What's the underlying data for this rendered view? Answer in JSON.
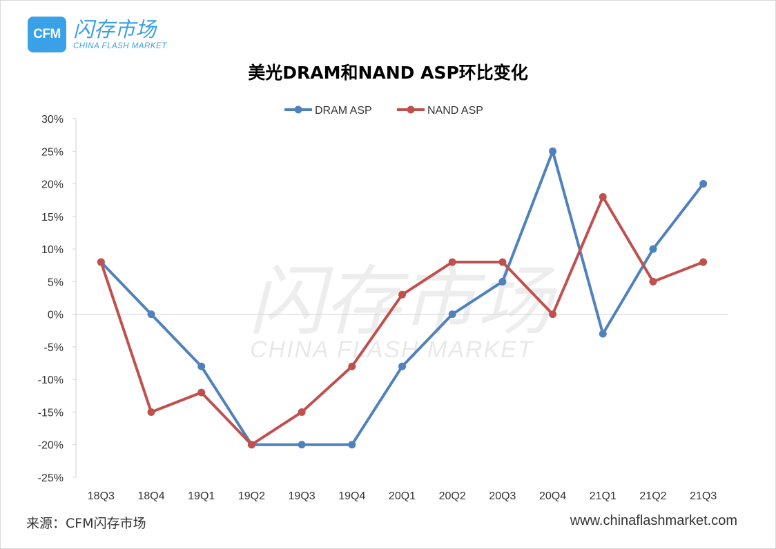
{
  "brand": {
    "logo_abbr": "CFM",
    "name_cn": "闪存市场",
    "name_en": "CHINA FLASH MARKET"
  },
  "watermark": {
    "cn": "闪存市场",
    "en": "CHINA FLASH MARKET"
  },
  "footer": {
    "source": "来源：CFM闪存市场",
    "website": "www.chinaflashmarket.com"
  },
  "colors": {
    "dram": "#4f81bd",
    "nand": "#c0504d",
    "logo": "#3aa0e8"
  },
  "chart_data": {
    "type": "line",
    "title": "美光DRAM和NAND ASP环比变化",
    "categories": [
      "18Q3",
      "18Q4",
      "19Q1",
      "19Q2",
      "19Q3",
      "19Q4",
      "20Q1",
      "20Q2",
      "20Q3",
      "20Q4",
      "21Q1",
      "21Q2",
      "21Q3"
    ],
    "series": [
      {
        "name": "DRAM ASP",
        "values": [
          8,
          0,
          -8,
          -20,
          -20,
          -20,
          -8,
          0,
          5,
          25,
          -3,
          10,
          20
        ]
      },
      {
        "name": "NAND ASP",
        "values": [
          8,
          -15,
          -12,
          -20,
          -15,
          -8,
          3,
          8,
          8,
          0,
          18,
          5,
          8
        ]
      }
    ],
    "ylim": [
      -25,
      30
    ],
    "yticks": [
      30,
      25,
      20,
      15,
      10,
      5,
      0,
      -5,
      -10,
      -15,
      -20,
      -25
    ],
    "ytick_labels": [
      "30%",
      "25%",
      "20%",
      "15%",
      "10%",
      "5%",
      "0%",
      "-5%",
      "-10%",
      "-15%",
      "-20%",
      "-25%"
    ],
    "legend_position": "top-center",
    "grid": false,
    "markers": "circle"
  }
}
